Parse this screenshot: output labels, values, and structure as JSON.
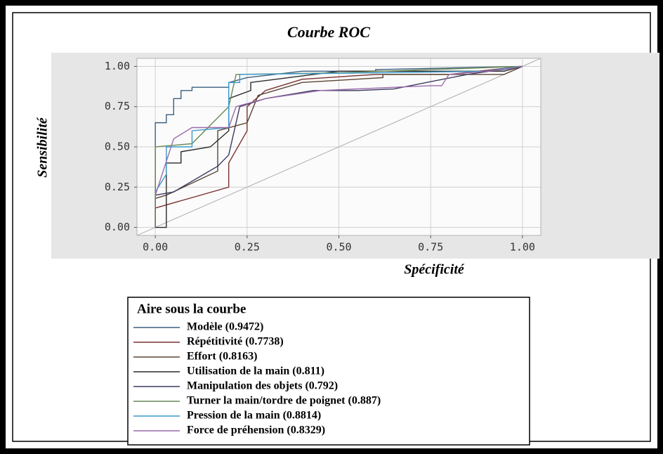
{
  "chart_data": {
    "type": "line",
    "title": "Courbe ROC",
    "x_label": "Spécificité",
    "y_label": "Sensibilité",
    "legend_title": "Aire sous la  courbe",
    "xlim": [
      -0.05,
      1.05
    ],
    "ylim": [
      -0.05,
      1.05
    ],
    "xticks": [
      {
        "value": 0,
        "label": "0.00"
      },
      {
        "value": 0.25,
        "label": "0.25"
      },
      {
        "value": 0.5,
        "label": "0.50"
      },
      {
        "value": 0.75,
        "label": "0.75"
      },
      {
        "value": 1,
        "label": "1.00"
      }
    ],
    "yticks": [
      {
        "value": 0,
        "label": "0.00"
      },
      {
        "value": 0.25,
        "label": "0.25"
      },
      {
        "value": 0.5,
        "label": "0.50"
      },
      {
        "value": 0.75,
        "label": "0.75"
      },
      {
        "value": 1,
        "label": "1.00"
      }
    ],
    "grid": true,
    "diagonal": true,
    "series": [
      {
        "name": "Modèle (0.9472)",
        "color": "#3b5f80",
        "x": [
          0,
          0,
          0.03,
          0.03,
          0.05,
          0.05,
          0.07,
          0.07,
          0.1,
          0.1,
          0.2,
          0.2,
          0.25,
          0.4,
          0.6,
          0.6,
          1
        ],
        "values": [
          0,
          0.65,
          0.65,
          0.7,
          0.7,
          0.8,
          0.8,
          0.85,
          0.85,
          0.87,
          0.87,
          0.9,
          0.93,
          0.97,
          0.97,
          0.98,
          1
        ]
      },
      {
        "name": "Répétitivité  (0.7738)",
        "color": "#7a3030",
        "x": [
          0,
          0,
          0.2,
          0.2,
          0.25,
          0.25,
          0.3,
          0.4,
          0.6,
          0.8,
          1
        ],
        "values": [
          0,
          0.12,
          0.25,
          0.4,
          0.6,
          0.75,
          0.85,
          0.92,
          0.95,
          0.95,
          1
        ]
      },
      {
        "name": "Effort (0.8163)",
        "color": "#5a4535",
        "x": [
          0,
          0,
          0.03,
          0.17,
          0.17,
          0.25,
          0.28,
          0.4,
          0.62,
          0.62,
          0.95,
          1
        ],
        "values": [
          0,
          0.18,
          0.2,
          0.35,
          0.6,
          0.65,
          0.82,
          0.9,
          0.93,
          0.95,
          0.95,
          1
        ]
      },
      {
        "name": "Utilisation de la main (0.811)",
        "color": "#2a2a2a",
        "x": [
          0,
          0.03,
          0.03,
          0.07,
          0.07,
          0.15,
          0.2,
          0.2,
          0.26,
          0.26,
          0.5,
          0.95,
          1
        ],
        "values": [
          0,
          0,
          0.4,
          0.4,
          0.47,
          0.5,
          0.6,
          0.8,
          0.85,
          0.9,
          0.97,
          0.97,
          1
        ]
      },
      {
        "name": "Manipulation des objets (0.792)",
        "color": "#3a3a60",
        "x": [
          0,
          0.05,
          0.17,
          0.2,
          0.23,
          0.3,
          0.43,
          0.55,
          0.65,
          0.85,
          1
        ],
        "values": [
          0.2,
          0.22,
          0.38,
          0.45,
          0.75,
          0.8,
          0.85,
          0.85,
          0.86,
          0.95,
          1
        ]
      },
      {
        "name": "Turner la main/tordre de poignet (0.887)",
        "color": "#6a8a55",
        "x": [
          0,
          0,
          0.1,
          0.2,
          0.22,
          0.5,
          1
        ],
        "values": [
          0,
          0.5,
          0.52,
          0.75,
          0.95,
          0.96,
          1
        ]
      },
      {
        "name": "Pression de la main (0.8814)",
        "color": "#3a9acc",
        "x": [
          0,
          0.03,
          0.03,
          0.1,
          0.1,
          0.2,
          0.2,
          0.23,
          0.23,
          0.6,
          0.9,
          1
        ],
        "values": [
          0.22,
          0.33,
          0.5,
          0.5,
          0.6,
          0.62,
          0.9,
          0.9,
          0.95,
          0.96,
          0.97,
          1
        ]
      },
      {
        "name": "Force de préhension (0.8329)",
        "color": "#9a6aaa",
        "x": [
          0,
          0.05,
          0.1,
          0.2,
          0.22,
          0.3,
          0.45,
          0.75,
          0.78,
          0.8,
          0.95,
          1
        ],
        "values": [
          0.2,
          0.55,
          0.62,
          0.62,
          0.75,
          0.8,
          0.85,
          0.88,
          0.88,
          0.95,
          0.98,
          1
        ]
      }
    ]
  }
}
